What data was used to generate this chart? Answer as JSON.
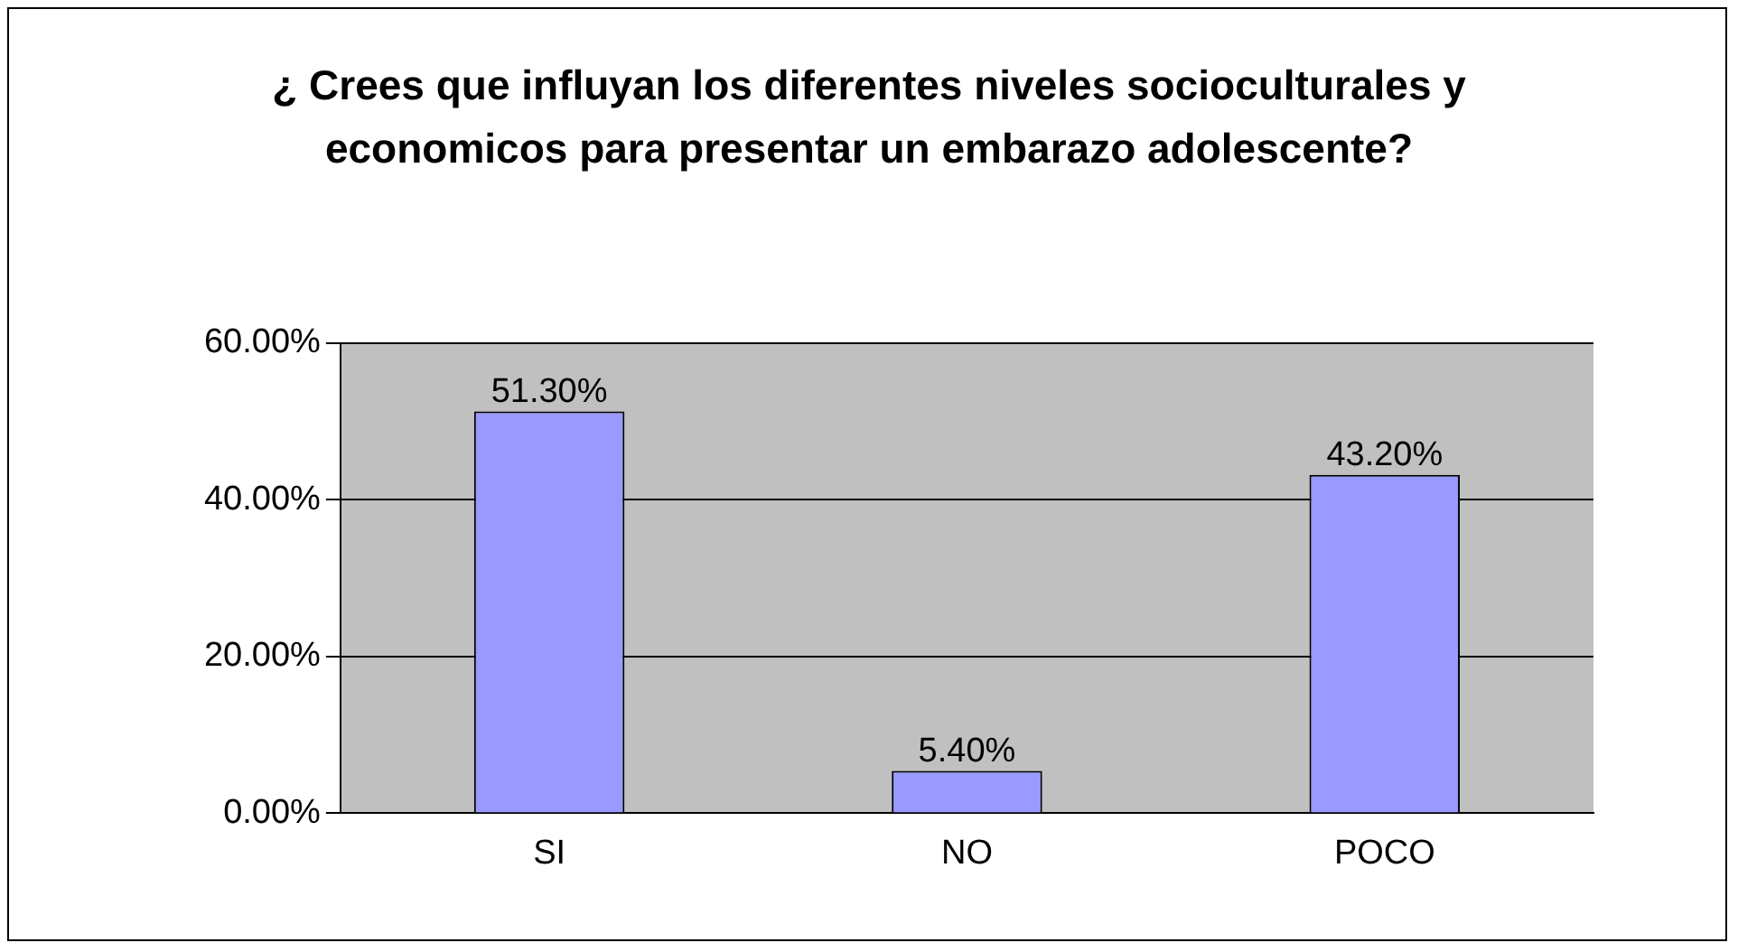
{
  "chart_data": {
    "type": "bar",
    "title": "¿ Crees que influyan los diferentes niveles socioculturales y economicos para presentar un embarazo adolescente?",
    "categories": [
      "SI",
      "NO",
      "POCO"
    ],
    "values": [
      51.3,
      5.4,
      43.2
    ],
    "value_labels": [
      "51.30%",
      "5.40%",
      "43.20%"
    ],
    "color": "#9999ff",
    "ylim": [
      0,
      60
    ],
    "yticks": [
      {
        "value": 0,
        "label": "0.00%"
      },
      {
        "value": 20,
        "label": "20.00%"
      },
      {
        "value": 40,
        "label": "40.00%"
      },
      {
        "value": 60,
        "label": "60.00%"
      }
    ],
    "grid": "y"
  }
}
